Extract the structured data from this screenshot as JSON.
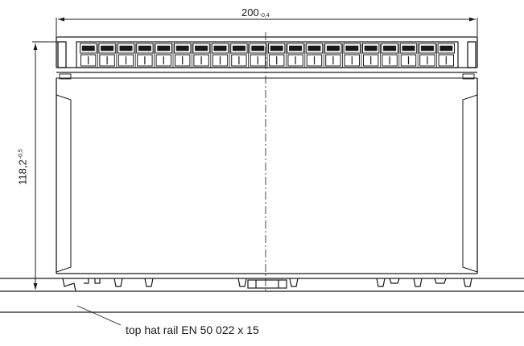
{
  "dimensions": {
    "width_value": "200",
    "width_tolerance": "-0,4",
    "height_value": "118,2",
    "height_tolerance": "-0,5"
  },
  "callout": {
    "rail_label": "top hat rail EN 50 022 x 15"
  },
  "drawing": {
    "terminal_count": 20,
    "line_color": "#1a1a1a",
    "background": "#ffffff"
  }
}
